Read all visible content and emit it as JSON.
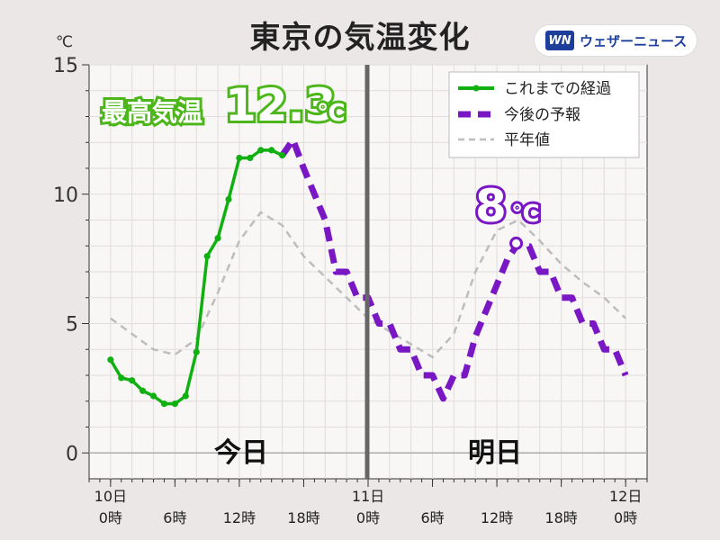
{
  "title": "東京の気温変化",
  "brand": {
    "mark": "WN",
    "name": "ウェザーニュース"
  },
  "colors": {
    "observed": "#11b011",
    "forecast": "#7a17c4",
    "normal": "#bdbdbd",
    "divider": "#666666",
    "plot_bg": "#f9f6f6"
  },
  "annotations": {
    "max_label": "最高気温",
    "max_value": "12.3",
    "max_unit": "℃",
    "tomorrow_value": "8",
    "tomorrow_unit": "℃"
  },
  "day_labels": {
    "today": "今日",
    "tomorrow": "明日"
  },
  "chart_data": {
    "type": "line",
    "ylabel": "℃",
    "ylim": [
      -1,
      15
    ],
    "yticks": [
      0,
      5,
      10,
      15
    ],
    "xlim": [
      -2,
      50
    ],
    "xticks": [
      {
        "x": 0,
        "line1": "10日",
        "line2": "0時"
      },
      {
        "x": 6,
        "line1": "",
        "line2": "6時"
      },
      {
        "x": 12,
        "line1": "",
        "line2": "12時"
      },
      {
        "x": 18,
        "line1": "",
        "line2": "18時"
      },
      {
        "x": 24,
        "line1": "11日",
        "line2": "0時"
      },
      {
        "x": 30,
        "line1": "",
        "line2": "6時"
      },
      {
        "x": 36,
        "line1": "",
        "line2": "12時"
      },
      {
        "x": 42,
        "line1": "",
        "line2": "18時"
      },
      {
        "x": 48,
        "line1": "12日",
        "line2": "0時"
      }
    ],
    "grid": true,
    "legend_position": "top-right",
    "divider_x": 24,
    "series": [
      {
        "name": "これまでの経過",
        "x": [
          0,
          1,
          2,
          3,
          4,
          5,
          6,
          7,
          8,
          9,
          10,
          11,
          12,
          13,
          14,
          15,
          16
        ],
        "y": [
          3.6,
          2.9,
          2.8,
          2.4,
          2.2,
          1.9,
          1.9,
          2.2,
          3.9,
          7.6,
          8.3,
          9.8,
          11.4,
          11.4,
          11.7,
          11.7,
          11.5
        ]
      },
      {
        "name": "今後の予報",
        "x": [
          16,
          17,
          18,
          19,
          20,
          21,
          22,
          23,
          24,
          25,
          26,
          27,
          28,
          29,
          30,
          31,
          32,
          33,
          34,
          35,
          36,
          37,
          38,
          39,
          40,
          41,
          42,
          43,
          44,
          45,
          46,
          47,
          48
        ],
        "y": [
          11.5,
          12.1,
          11.0,
          10.0,
          9.0,
          7.0,
          7.0,
          6.0,
          6.0,
          5.0,
          5.0,
          4.0,
          4.0,
          3.0,
          3.0,
          2.1,
          3.0,
          3.0,
          4.5,
          5.5,
          6.5,
          7.5,
          8.1,
          8.0,
          7.0,
          7.0,
          6.0,
          6.0,
          5.0,
          5.0,
          4.0,
          4.0,
          3.0
        ]
      },
      {
        "name": "平年値",
        "x": [
          0,
          2,
          4,
          6,
          8,
          10,
          12,
          14,
          16,
          18,
          20,
          22,
          24,
          26,
          28,
          30,
          32,
          34,
          36,
          38,
          40,
          42,
          44,
          46,
          48
        ],
        "y": [
          5.2,
          4.6,
          4.0,
          3.8,
          4.4,
          6.2,
          8.2,
          9.3,
          8.8,
          7.6,
          6.8,
          6.0,
          5.2,
          4.7,
          4.2,
          3.7,
          4.6,
          7.0,
          8.6,
          9.0,
          8.2,
          7.3,
          6.6,
          6.0,
          5.2
        ]
      }
    ]
  }
}
